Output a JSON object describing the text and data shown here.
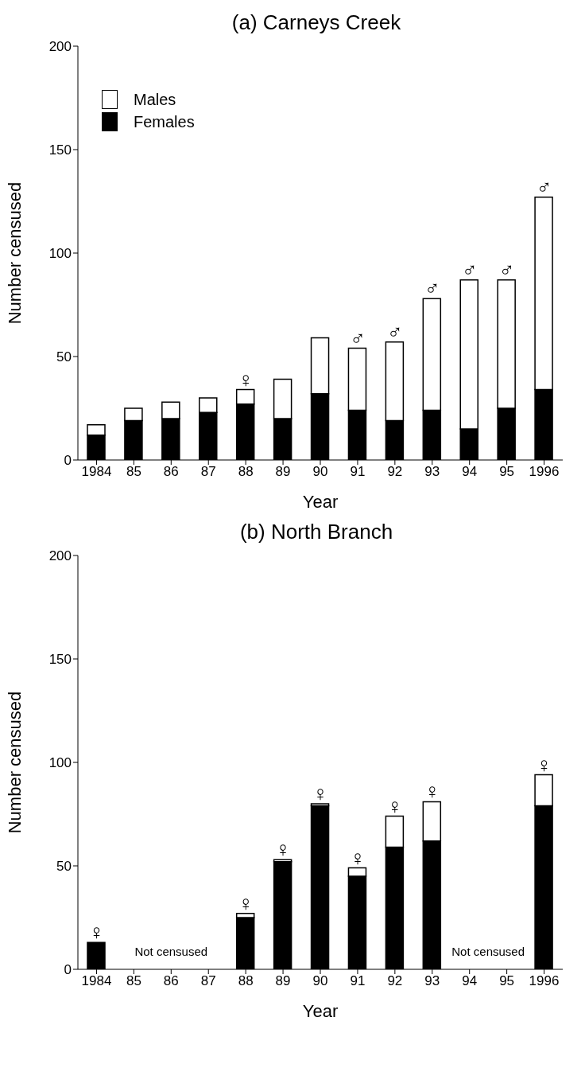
{
  "chart_data": [
    {
      "type": "bar",
      "title": "(a) Carneys Creek",
      "xlabel": "Year",
      "ylabel": "Number censused",
      "categories": [
        "1984",
        "85",
        "86",
        "87",
        "88",
        "89",
        "90",
        "91",
        "92",
        "93",
        "94",
        "95",
        "1996"
      ],
      "stacked": true,
      "series": [
        {
          "name": "Females",
          "color": "#000000",
          "values": [
            12,
            19,
            20,
            23,
            27,
            20,
            32,
            24,
            19,
            24,
            15,
            25,
            34
          ]
        },
        {
          "name": "Males",
          "color": "#ffffff",
          "values": [
            5,
            6,
            8,
            7,
            7,
            19,
            27,
            30,
            38,
            54,
            72,
            62,
            93
          ]
        }
      ],
      "ylim": [
        0,
        200
      ],
      "yticks": [
        0,
        50,
        100,
        150,
        200
      ],
      "grid": false,
      "legend": "top left",
      "annotations": [
        {
          "text": "♀",
          "x": "88",
          "y": 34
        },
        {
          "text": "♂",
          "x": "91",
          "y": 54
        },
        {
          "text": "♂",
          "x": "92",
          "y": 57
        },
        {
          "text": "♂",
          "x": "93",
          "y": 78
        },
        {
          "text": "♂",
          "x": "94",
          "y": 87
        },
        {
          "text": "♂",
          "x": "95",
          "y": 87
        },
        {
          "text": "♂",
          "x": "1996",
          "y": 127
        }
      ]
    },
    {
      "type": "bar",
      "title": "(b) North Branch",
      "xlabel": "Year",
      "ylabel": "Number censused",
      "categories": [
        "1984",
        "85",
        "86",
        "87",
        "88",
        "89",
        "90",
        "91",
        "92",
        "93",
        "94",
        "95",
        "1996"
      ],
      "stacked": true,
      "series": [
        {
          "color": "#000000",
          "values": [
            13,
            null,
            null,
            null,
            25,
            52,
            79,
            45,
            59,
            62,
            null,
            null,
            79
          ]
        },
        {
          "color": "#ffffff",
          "values": [
            null,
            null,
            null,
            null,
            2,
            1,
            1,
            4,
            15,
            19,
            null,
            null,
            15
          ]
        }
      ],
      "ylim": [
        0,
        200
      ],
      "yticks": [
        0,
        50,
        100,
        150,
        200
      ],
      "grid": false,
      "annotations": [
        {
          "text": "♀",
          "x": "1984",
          "y": 13
        },
        {
          "text": "♀",
          "x": "88",
          "y": 27
        },
        {
          "text": "♀",
          "x": "89",
          "y": 53
        },
        {
          "text": "♀",
          "x": "90",
          "y": 80
        },
        {
          "text": "♀",
          "x": "91",
          "y": 49
        },
        {
          "text": "♀",
          "x": "92",
          "y": 74
        },
        {
          "text": "♀",
          "x": "93",
          "y": 81
        },
        {
          "text": "♀",
          "x": "1996",
          "y": 94
        },
        "Not censused",
        "Not censused"
      ]
    }
  ]
}
